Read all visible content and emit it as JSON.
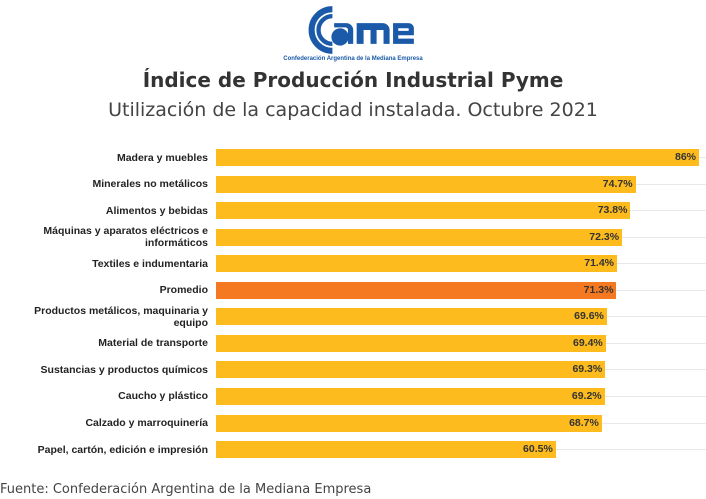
{
  "logo": {
    "text": "came",
    "tagline": "Confederación Argentina de la Mediana Empresa",
    "color": "#1a5aa8"
  },
  "chart_data": {
    "type": "bar",
    "orientation": "horizontal",
    "title": "Índice de Producción Industrial Pyme",
    "subtitle": "Utilización de la capacidad instalada. Octubre 2021",
    "categories": [
      "Madera y muebles",
      "Minerales no metálicos",
      "Alimentos y bebidas",
      "Máquinas y aparatos eléctricos e informáticos",
      "Textiles e indumentaria",
      "Promedio",
      "Productos metálicos, maquinaria y equipo",
      "Material de transporte",
      "Sustancias y productos químicos",
      "Caucho y plástico",
      "Calzado y marroquinería",
      "Papel, cartón, edición e impresión"
    ],
    "values": [
      86,
      74.7,
      73.8,
      72.3,
      71.4,
      71.3,
      69.6,
      69.4,
      69.3,
      69.2,
      68.7,
      60.5
    ],
    "data_labels": [
      "86%",
      "74.7%",
      "73.8%",
      "72.3%",
      "71.4%",
      "71.3%",
      "69.6%",
      "69.4%",
      "69.3%",
      "69.2%",
      "68.7%",
      "60.5%"
    ],
    "unit": "%",
    "xlim": [
      0,
      86
    ],
    "colors": {
      "bar": "#FDBB1E",
      "highlight": "#F47920"
    },
    "highlight_category": "Promedio"
  },
  "source": "Fuente: Confederación Argentina de la Mediana Empresa"
}
